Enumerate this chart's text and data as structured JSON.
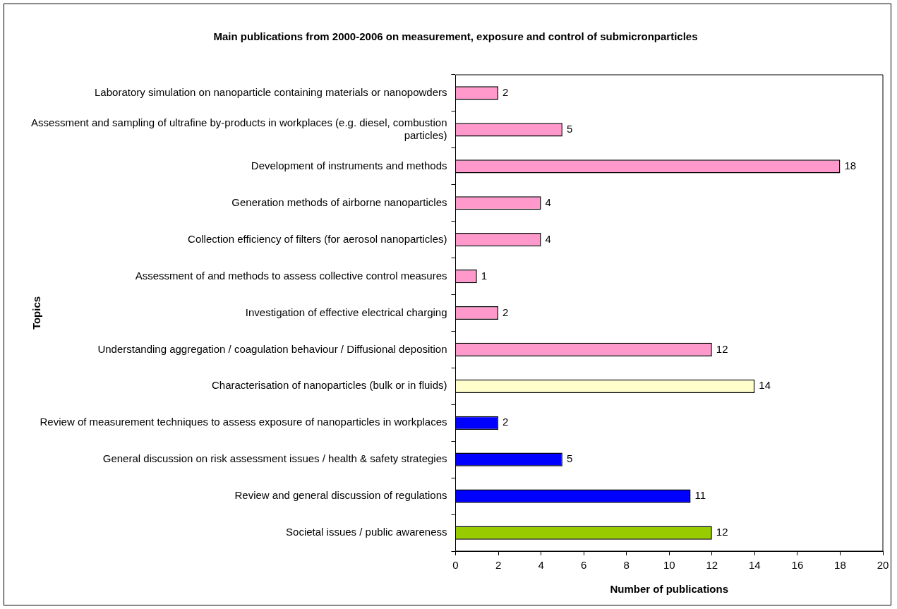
{
  "chart_data": {
    "type": "bar",
    "orientation": "horizontal",
    "title": "Main publications from 2000-2006 on measurement, exposure and control of submicronparticles",
    "xlabel": "Number of publications",
    "ylabel": "Topics",
    "categories": [
      "Laboratory simulation on nanoparticle containing materials or nanopowders",
      "Assessment and sampling of ultrafine by-products in workplaces (e.g. diesel, combustion particles)",
      "Development of instruments and methods",
      "Generation methods of airborne nanoparticles",
      "Collection efficiency of filters (for aerosol nanoparticles)",
      "Assessment of and methods to assess collective control measures",
      "Investigation of effective electrical charging",
      "Understanding aggregation / coagulation behaviour / Diffusional deposition",
      "Characterisation of nanoparticles (bulk or in fluids)",
      "Review of measurement techniques to assess exposure of nanoparticles in workplaces",
      "General discussion on risk assessment issues / health & safety strategies",
      "Review and general discussion of regulations",
      "Societal issues / public awareness"
    ],
    "values": [
      2,
      5,
      18,
      4,
      4,
      1,
      2,
      12,
      14,
      2,
      5,
      11,
      12
    ],
    "colors": [
      "#ff99cc",
      "#ff99cc",
      "#ff99cc",
      "#ff99cc",
      "#ff99cc",
      "#ff99cc",
      "#ff99cc",
      "#ff99cc",
      "#ffffcc",
      "#0000ff",
      "#0000ff",
      "#0000ff",
      "#99cc00"
    ],
    "xlim": [
      0,
      20
    ],
    "xticks": [
      0,
      2,
      4,
      6,
      8,
      10,
      12,
      14,
      16,
      18,
      20
    ],
    "grid": false,
    "legend": false,
    "data_labels": true
  }
}
